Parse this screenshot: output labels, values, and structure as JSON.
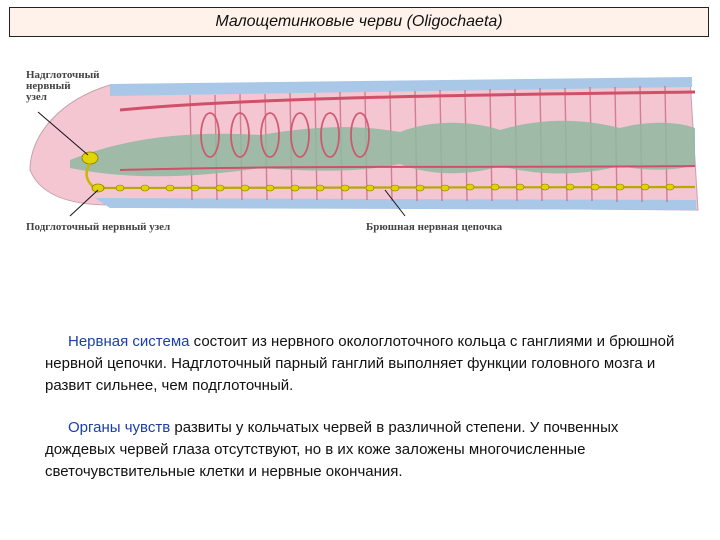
{
  "slide": {
    "title": "Малощетинковые черви (Oligochaeta)"
  },
  "figure": {
    "label_supra": [
      "Надглоточный",
      "нервный",
      "узел"
    ],
    "label_sub": "Подглоточный нервный узел",
    "label_chain": "Брюшная нервная цепочка"
  },
  "text": {
    "p1_term": "Нервная система",
    "p1_rest": " состоит из нервного окологлоточного кольца с ганглиями и брюшной нервной цепочки. Надглоточный парный ганглий выполняет функции головного мозга и развит сильнее, чем подглоточный.",
    "p2_term": "Органы чувств",
    "p2_rest": " развиты у кольчатых червей в различной степени. У почвенных дождевых червей глаза отсутствуют, но в их коже заложены многочисленные светочувствительные клетки и нервные окончания."
  },
  "colors": {
    "title_bg": "#fff2ea",
    "highlight": "#1a3fa8",
    "worm_body": "#f3c6d2",
    "gut": "#8fb8a0",
    "nerve": "#e2d400"
  }
}
